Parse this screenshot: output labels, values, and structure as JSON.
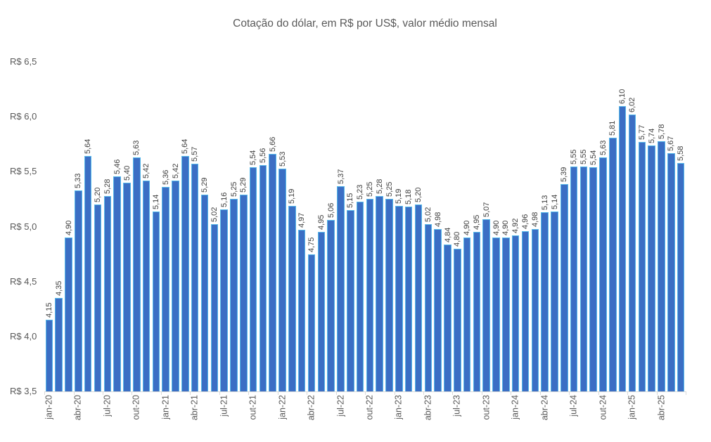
{
  "chart_data": {
    "type": "bar",
    "title": "Cotação do dólar, em R$ por US$, valor médio mensal",
    "categories": [
      "jan-20",
      "fev-20",
      "mar-20",
      "abr-20",
      "mai-20",
      "jun-20",
      "jul-20",
      "ago-20",
      "set-20",
      "out-20",
      "nov-20",
      "dez-20",
      "jan-21",
      "fev-21",
      "mar-21",
      "abr-21",
      "mai-21",
      "jun-21",
      "jul-21",
      "ago-21",
      "set-21",
      "out-21",
      "nov-21",
      "dez-21",
      "jan-22",
      "fev-22",
      "mar-22",
      "abr-22",
      "mai-22",
      "jun-22",
      "jul-22",
      "ago-22",
      "set-22",
      "out-22",
      "nov-22",
      "dez-22",
      "jan-23",
      "fev-23",
      "mar-23",
      "abr-23",
      "mai-23",
      "jun-23",
      "jul-23",
      "ago-23",
      "set-23",
      "out-23",
      "nov-23",
      "dez-23",
      "jan-24",
      "fev-24",
      "mar-24",
      "abr-24",
      "mai-24",
      "jun-24",
      "jul-24",
      "ago-24",
      "set-24",
      "out-24",
      "nov-24",
      "dez-24",
      "jan-25",
      "fev-25",
      "mar-25",
      "abr-25",
      "mai-25",
      "jun-25"
    ],
    "values": [
      4.15,
      4.35,
      4.9,
      5.33,
      5.64,
      5.2,
      5.28,
      5.46,
      5.4,
      5.63,
      5.42,
      5.14,
      5.36,
      5.42,
      5.64,
      5.57,
      5.29,
      5.02,
      5.16,
      5.25,
      5.29,
      5.54,
      5.56,
      5.66,
      5.53,
      5.19,
      4.97,
      4.75,
      4.95,
      5.06,
      5.37,
      5.15,
      5.23,
      5.25,
      5.28,
      5.25,
      5.19,
      5.18,
      5.2,
      5.02,
      4.98,
      4.84,
      4.8,
      4.9,
      4.95,
      5.07,
      4.9,
      4.9,
      4.92,
      4.96,
      4.98,
      5.13,
      5.14,
      5.39,
      5.55,
      5.55,
      5.54,
      5.63,
      5.81,
      6.1,
      6.02,
      5.77,
      5.74,
      5.78,
      5.67,
      5.58
    ],
    "value_labels": [
      "4,15",
      "4,35",
      "4,90",
      "5,33",
      "5,64",
      "5,20",
      "5,28",
      "5,46",
      "5,40",
      "5,63",
      "5,42",
      "5,14",
      "5,36",
      "5,42",
      "5,64",
      "5,57",
      "5,29",
      "5,02",
      "5,16",
      "5,25",
      "5,29",
      "5,54",
      "5,56",
      "5,66",
      "5,53",
      "5,19",
      "4,97",
      "4,75",
      "4,95",
      "5,06",
      "5,37",
      "5,15",
      "5,23",
      "5,25",
      "5,28",
      "5,25",
      "5,19",
      "5,18",
      "5,20",
      "5,02",
      "4,98",
      "4,84",
      "4,80",
      "4,90",
      "4,95",
      "5,07",
      "4,90",
      "4,90",
      "4,92",
      "4,96",
      "4,98",
      "5,13",
      "5,14",
      "5,39",
      "5,55",
      "5,55",
      "5,54",
      "5,63",
      "5,81",
      "6,10",
      "6,02",
      "5,77",
      "5,74",
      "5,78",
      "5,67",
      "5,58"
    ],
    "x_tick_labels": [
      "jan-20",
      "abr-20",
      "jul-20",
      "out-20",
      "jan-21",
      "abr-21",
      "jul-21",
      "out-21",
      "jan-22",
      "abr-22",
      "jul-22",
      "out-22",
      "jan-23",
      "abr-23",
      "jul-23",
      "out-23",
      "jan-24",
      "abr-24",
      "jul-24",
      "out-24",
      "jan-25",
      "abr-25"
    ],
    "x_tick_every": 3,
    "y_ticks": [
      {
        "label": "R$ 6,5",
        "value": 6.5
      },
      {
        "label": "R$ 6,0",
        "value": 6.0
      },
      {
        "label": "R$ 5,5",
        "value": 5.5
      },
      {
        "label": "R$ 5,0",
        "value": 5.0
      },
      {
        "label": "R$ 4,5",
        "value": 4.5
      },
      {
        "label": "R$ 4,0",
        "value": 4.0
      },
      {
        "label": "R$ 3,5",
        "value": 3.5
      }
    ],
    "ylim": [
      3.5,
      6.5
    ],
    "grid": false,
    "legend_position": "none",
    "colors": {
      "bar_fill": "#3B6EC4",
      "bar_border": "#56B9EA",
      "title_text": "#595959",
      "axis_text": "#595959",
      "value_label_text": "#404040",
      "axis_line": "#D9D9D9"
    }
  }
}
